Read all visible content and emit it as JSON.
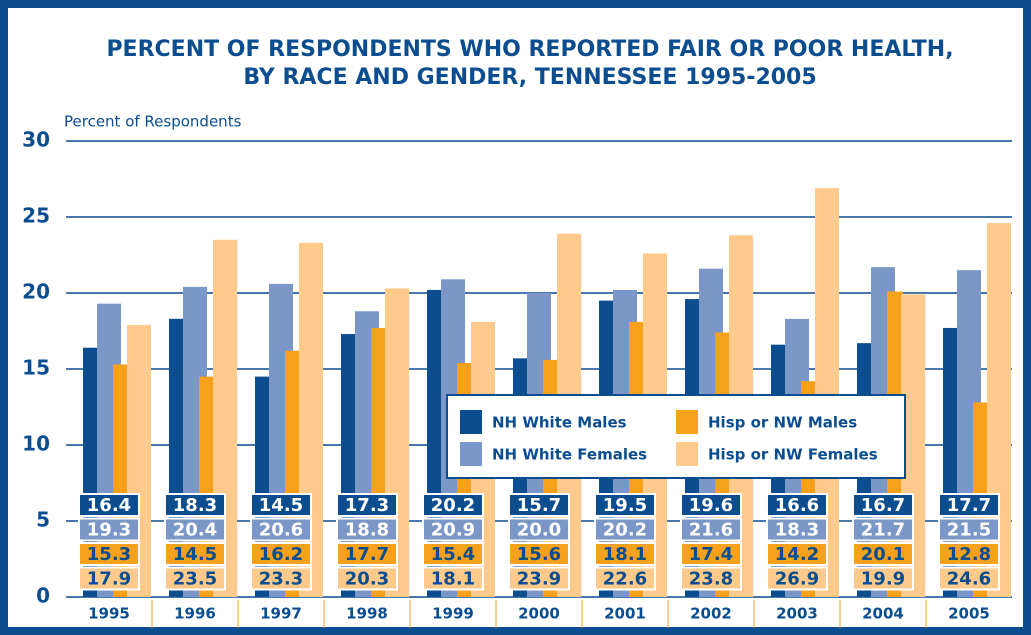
{
  "chart_data": {
    "type": "bar",
    "title": "PERCENT OF RESPONDENTS WHO REPORTED FAIR OR POOR HEALTH,",
    "subtitle": "BY RACE AND GENDER, TENNESSEE 1995-2005",
    "y_label": "Percent of Respondents",
    "categories": [
      "1995",
      "1996",
      "1997",
      "1998",
      "1999",
      "2000",
      "2001",
      "2002",
      "2003",
      "2004",
      "2005"
    ],
    "series": [
      {
        "name": "NH White Males",
        "color": "#0b4d8e",
        "values": [
          16.4,
          18.3,
          14.5,
          17.3,
          20.2,
          15.7,
          19.5,
          19.6,
          16.6,
          16.7,
          17.7
        ],
        "value_labels": [
          "16.4",
          "18.3",
          "14.5",
          "17.3",
          "20.2",
          "15.7",
          "19.5",
          "19.6",
          "16.6",
          "16.7",
          "17.7"
        ]
      },
      {
        "name": "NH White Females",
        "color": "#7b97c7",
        "values": [
          19.3,
          20.4,
          20.6,
          18.8,
          20.9,
          20.0,
          20.2,
          21.6,
          18.3,
          21.7,
          21.5
        ],
        "value_labels": [
          "19.3",
          "20.4",
          "20.6",
          "18.8",
          "20.9",
          "20.0",
          "20.2",
          "21.6",
          "18.3",
          "21.7",
          "21.5"
        ]
      },
      {
        "name": "Hisp or NW Males",
        "color": "#f5a11c",
        "values": [
          15.3,
          14.5,
          16.2,
          17.7,
          15.4,
          15.6,
          18.1,
          17.4,
          14.2,
          20.1,
          12.8
        ],
        "value_labels": [
          "15.3",
          "14.5",
          "16.2",
          "17.7",
          "15.4",
          "15.6",
          "18.1",
          "17.4",
          "14.2",
          "20.1",
          "12.8"
        ]
      },
      {
        "name": "Hisp or NW Females",
        "color": "#fdca8b",
        "values": [
          17.9,
          23.5,
          23.3,
          20.3,
          18.1,
          23.9,
          22.6,
          23.8,
          26.9,
          19.9,
          24.6
        ],
        "value_labels": [
          "17.9",
          "23.5",
          "23.3",
          "20.3",
          "18.1",
          "23.9",
          "22.6",
          "23.8",
          "26.9",
          "19.9",
          "24.6"
        ]
      }
    ],
    "ylim": [
      0,
      30
    ],
    "yticks": [
      0,
      5,
      10,
      15,
      20,
      25,
      30
    ],
    "grid": true
  }
}
